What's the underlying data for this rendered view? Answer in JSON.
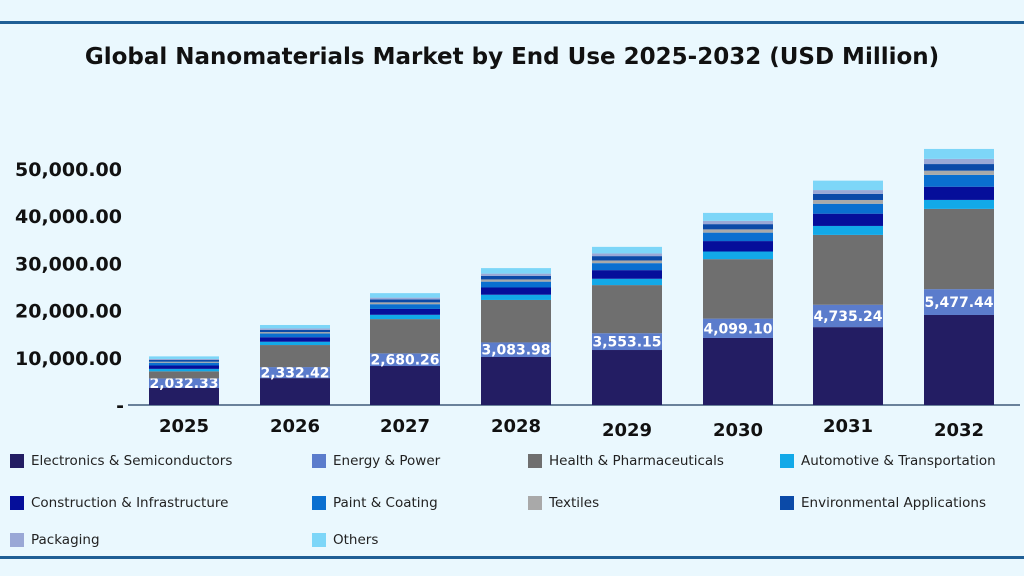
{
  "chart_data": {
    "type": "bar",
    "stacked": true,
    "title": "Global Nanomaterials Market by End Use 2025-2032 (USD Million)",
    "categories": [
      "2025",
      "2026",
      "2027",
      "2028",
      "2029",
      "2030",
      "2031",
      "2032"
    ],
    "ylim": [
      0,
      55000
    ],
    "yticks": [
      "-",
      "10,000.00",
      "20,000.00",
      "30,000.00",
      "40,000.00",
      "50,000.00"
    ],
    "grid": false,
    "legend": "bottom",
    "series": [
      {
        "name": "Electronics & Semiconductors",
        "color": "#231d63",
        "values": [
          3600,
          5700,
          8260,
          10170,
          11650,
          14200,
          16500,
          19070
        ]
      },
      {
        "name": "Energy & Power",
        "color": "#5b7ccc",
        "values": [
          2032.33,
          2332.42,
          2680.26,
          3083.98,
          3553.15,
          4099.1,
          4735.24,
          5477.44
        ],
        "labels": [
          "2,032.33",
          "2,332.42",
          "2,680.26",
          "3,083.98",
          "3,553.15",
          "4,099.10",
          "4,735.24",
          "5,477.44"
        ]
      },
      {
        "name": "Health & Pharmaceuticals",
        "color": "#6f6f6f",
        "values": [
          1500,
          4670,
          7260,
          9000,
          10200,
          12600,
          14800,
          17000
        ]
      },
      {
        "name": "Automotive & Transportation",
        "color": "#12a9e8",
        "values": [
          520,
          700,
          910,
          1110,
          1340,
          1620,
          1900,
          1900
        ]
      },
      {
        "name": "Construction & Infrastructure",
        "color": "#050e9a",
        "values": [
          720,
          960,
          1240,
          1530,
          1830,
          2210,
          2600,
          2800
        ]
      },
      {
        "name": "Paint & Coating",
        "color": "#0a6fd0",
        "values": [
          580,
          780,
          1010,
          1240,
          1480,
          1790,
          2100,
          2500
        ]
      },
      {
        "name": "Textiles",
        "color": "#a9a9a9",
        "values": [
          220,
          300,
          385,
          470,
          570,
          690,
          800,
          900
        ]
      },
      {
        "name": "Environmental Applications",
        "color": "#0b4aa8",
        "values": [
          360,
          480,
          620,
          760,
          920,
          1110,
          1300,
          1400
        ]
      },
      {
        "name": "Packaging",
        "color": "#9aa8d6",
        "values": [
          220,
          300,
          385,
          470,
          570,
          690,
          800,
          1100
        ]
      },
      {
        "name": "Others",
        "color": "#7dd6f8",
        "values": [
          550,
          730,
          950,
          1170,
          1390,
          1690,
          2000,
          2100
        ]
      }
    ]
  }
}
